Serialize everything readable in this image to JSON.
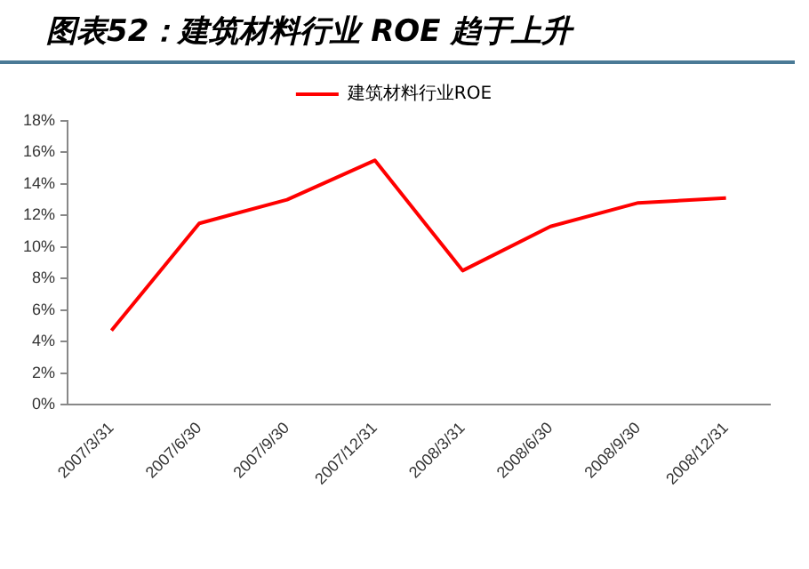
{
  "chart_data": {
    "type": "line",
    "title": "图表52：建筑材料行业 ROE 趋于上升",
    "categories": [
      "2007/3/31",
      "2007/6/30",
      "2007/9/30",
      "2007/12/31",
      "2008/3/31",
      "2008/6/30",
      "2008/9/30",
      "2008/12/31"
    ],
    "series": [
      {
        "name": "建筑材料行业ROE",
        "color": "#ff0000",
        "values": [
          4.7,
          11.5,
          13.0,
          15.5,
          8.5,
          11.3,
          12.8,
          13.1
        ]
      }
    ],
    "ylim": [
      0,
      18
    ],
    "yticks": [
      {
        "value": 0,
        "label": "0%"
      },
      {
        "value": 2,
        "label": "2%"
      },
      {
        "value": 4,
        "label": "4%"
      },
      {
        "value": 6,
        "label": "6%"
      },
      {
        "value": 8,
        "label": "8%"
      },
      {
        "value": 10,
        "label": "10%"
      },
      {
        "value": 12,
        "label": "12%"
      },
      {
        "value": 14,
        "label": "14%"
      },
      {
        "value": 16,
        "label": "16%"
      },
      {
        "value": 18,
        "label": "18%"
      }
    ],
    "grid": false,
    "legend": "top",
    "marker": "none",
    "line_style": "solid"
  }
}
